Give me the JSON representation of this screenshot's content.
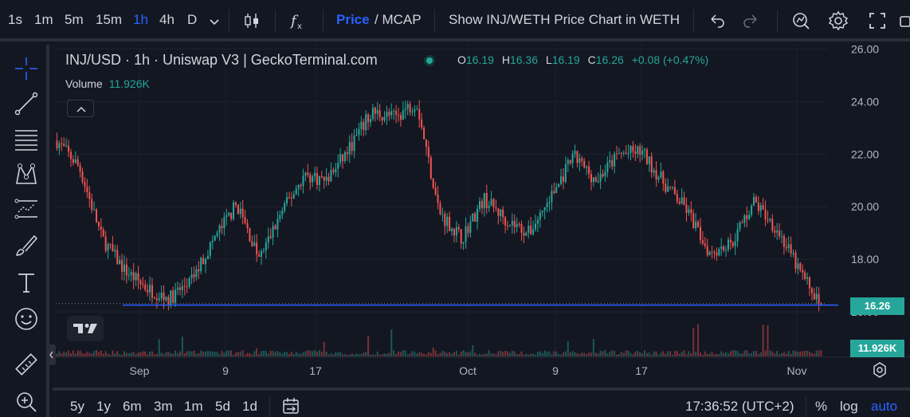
{
  "toolbar": {
    "intervals": [
      "1s",
      "1m",
      "5m",
      "15m",
      "1h",
      "4h",
      "D"
    ],
    "active_interval": "1h",
    "price_label": "Price",
    "mcap_label": "/ MCAP",
    "show_pair_label": "Show INJ/WETH Price Chart in WETH",
    "icons": [
      "chevron-down-icon",
      "candles-icon",
      "fx-icon",
      "undo-icon",
      "redo-icon",
      "snapshot-icon",
      "gear-icon",
      "fullscreen-icon",
      "camera-icon"
    ]
  },
  "left_tools": [
    "crosshair-icon",
    "trendline-icon",
    "fib-icon",
    "pattern-icon",
    "forecast-icon",
    "brush-icon",
    "text-icon",
    "emoji-icon",
    "ruler-icon",
    "zoom-icon"
  ],
  "legend": {
    "title": "INJ/USD · 1h · Uniswap V3 | GeckoTerminal.com",
    "o_label": "O",
    "o": "16.19",
    "h_label": "H",
    "h": "16.36",
    "l_label": "L",
    "l": "16.19",
    "c_label": "C",
    "c": "16.26",
    "change": "+0.08 (+0.47%)",
    "volume_label": "Volume",
    "volume": "11.926K"
  },
  "axis": {
    "price_ticks": [
      "26.00",
      "24.00",
      "22.00",
      "20.00",
      "18.00",
      "16.00"
    ],
    "time_ticks": [
      "Sep",
      "9",
      "17",
      "Oct",
      "9",
      "17",
      "Nov"
    ],
    "last_price_tag": "16.26",
    "last_volume_tag": "11.926K"
  },
  "bottom": {
    "ranges": [
      "5y",
      "1y",
      "6m",
      "3m",
      "1m",
      "5d",
      "1d"
    ],
    "clock": "17:36:52 (UTC+2)",
    "percent_label": "%",
    "log_label": "log",
    "auto_label": "auto"
  },
  "colors": {
    "up": "#26a69a",
    "down": "#ef5350",
    "accent": "#2962ff",
    "background": "#131722"
  },
  "chart_data": {
    "type": "line",
    "series": [
      {
        "name": "INJ/USD",
        "x": [
          "Aug 29",
          "Aug 31",
          "Sep 2",
          "Sep 4",
          "Sep 6",
          "Sep 8",
          "Sep 10",
          "Sep 12",
          "Sep 14",
          "Sep 16",
          "Sep 18",
          "Sep 20",
          "Sep 22",
          "Sep 24",
          "Sep 26",
          "Sep 28",
          "Sep 30",
          "Oct 2",
          "Oct 4",
          "Oct 6",
          "Oct 8",
          "Oct 10",
          "Oct 12",
          "Oct 14",
          "Oct 16",
          "Oct 18",
          "Oct 20",
          "Oct 22",
          "Oct 24",
          "Oct 26",
          "Oct 28",
          "Oct 30",
          "Nov 1",
          "Nov 3",
          "Nov 4"
        ],
        "values": [
          22.5,
          21.5,
          18.8,
          17.6,
          16.9,
          16.5,
          17.2,
          18.8,
          20.1,
          18.0,
          19.8,
          21.2,
          21.0,
          22.2,
          23.6,
          23.4,
          24.0,
          19.8,
          18.8,
          20.3,
          19.5,
          19.0,
          20.4,
          21.9,
          21.0,
          22.0,
          22.1,
          20.9,
          19.9,
          18.3,
          18.6,
          20.2,
          19.2,
          17.6,
          16.26
        ]
      }
    ],
    "ylim": [
      15.4,
      26.1
    ],
    "y_scale": "linear",
    "price_line": 16.26,
    "grid": true,
    "legend_position": "top-left"
  }
}
